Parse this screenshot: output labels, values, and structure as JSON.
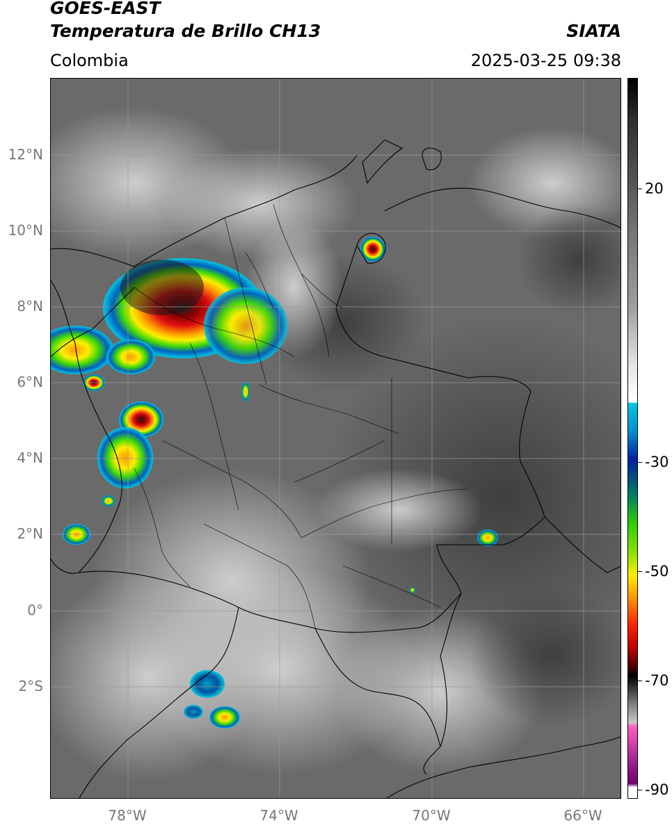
{
  "header": {
    "satellite": "GOES-EAST",
    "product": "Temperatura de Brillo CH13",
    "brand": "SIATA",
    "region": "Colombia",
    "timestamp": "2025-03-25 09:38"
  },
  "map": {
    "lat_ticks": [
      "12°N",
      "10°N",
      "8°N",
      "6°N",
      "4°N",
      "2°N",
      "0°",
      "2°S"
    ],
    "lon_ticks": [
      "78°W",
      "74°W",
      "70°W",
      "66°W"
    ],
    "gridlines": true,
    "colors": {
      "cloud_free": "#5a5a5a",
      "cold_cloud_top": "#e0e0e0",
      "convective_core": "#c00000",
      "borders": "#000000"
    }
  },
  "colorbar": {
    "labels": [
      "20",
      "-30",
      "-50",
      "-70",
      "-90"
    ],
    "units_shown": false
  }
}
